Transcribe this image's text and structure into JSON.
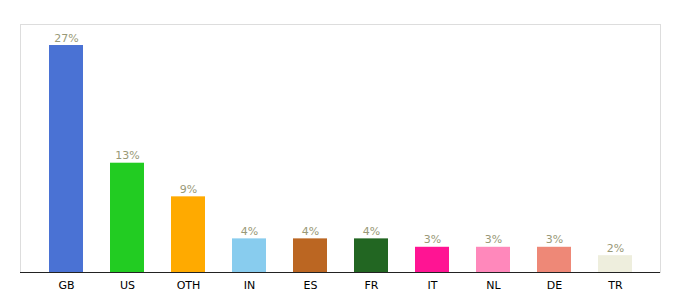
{
  "chart_data": {
    "type": "bar",
    "categories": [
      "GB",
      "US",
      "OTH",
      "IN",
      "ES",
      "FR",
      "IT",
      "NL",
      "DE",
      "TR"
    ],
    "values": [
      27,
      13,
      9,
      4,
      4,
      4,
      3,
      3,
      3,
      2
    ],
    "value_labels": [
      "27%",
      "13%",
      "9%",
      "4%",
      "4%",
      "4%",
      "3%",
      "3%",
      "3%",
      "2%"
    ],
    "colors": [
      "#4a72d4",
      "#22cc22",
      "#ffaa00",
      "#88ccee",
      "#bb6622",
      "#226622",
      "#ff1493",
      "#ff88bb",
      "#ee8877",
      "#eeeedd"
    ],
    "ylim": [
      0,
      29.5
    ],
    "data_labels": true,
    "tick_labels": "x",
    "grid": false
  }
}
